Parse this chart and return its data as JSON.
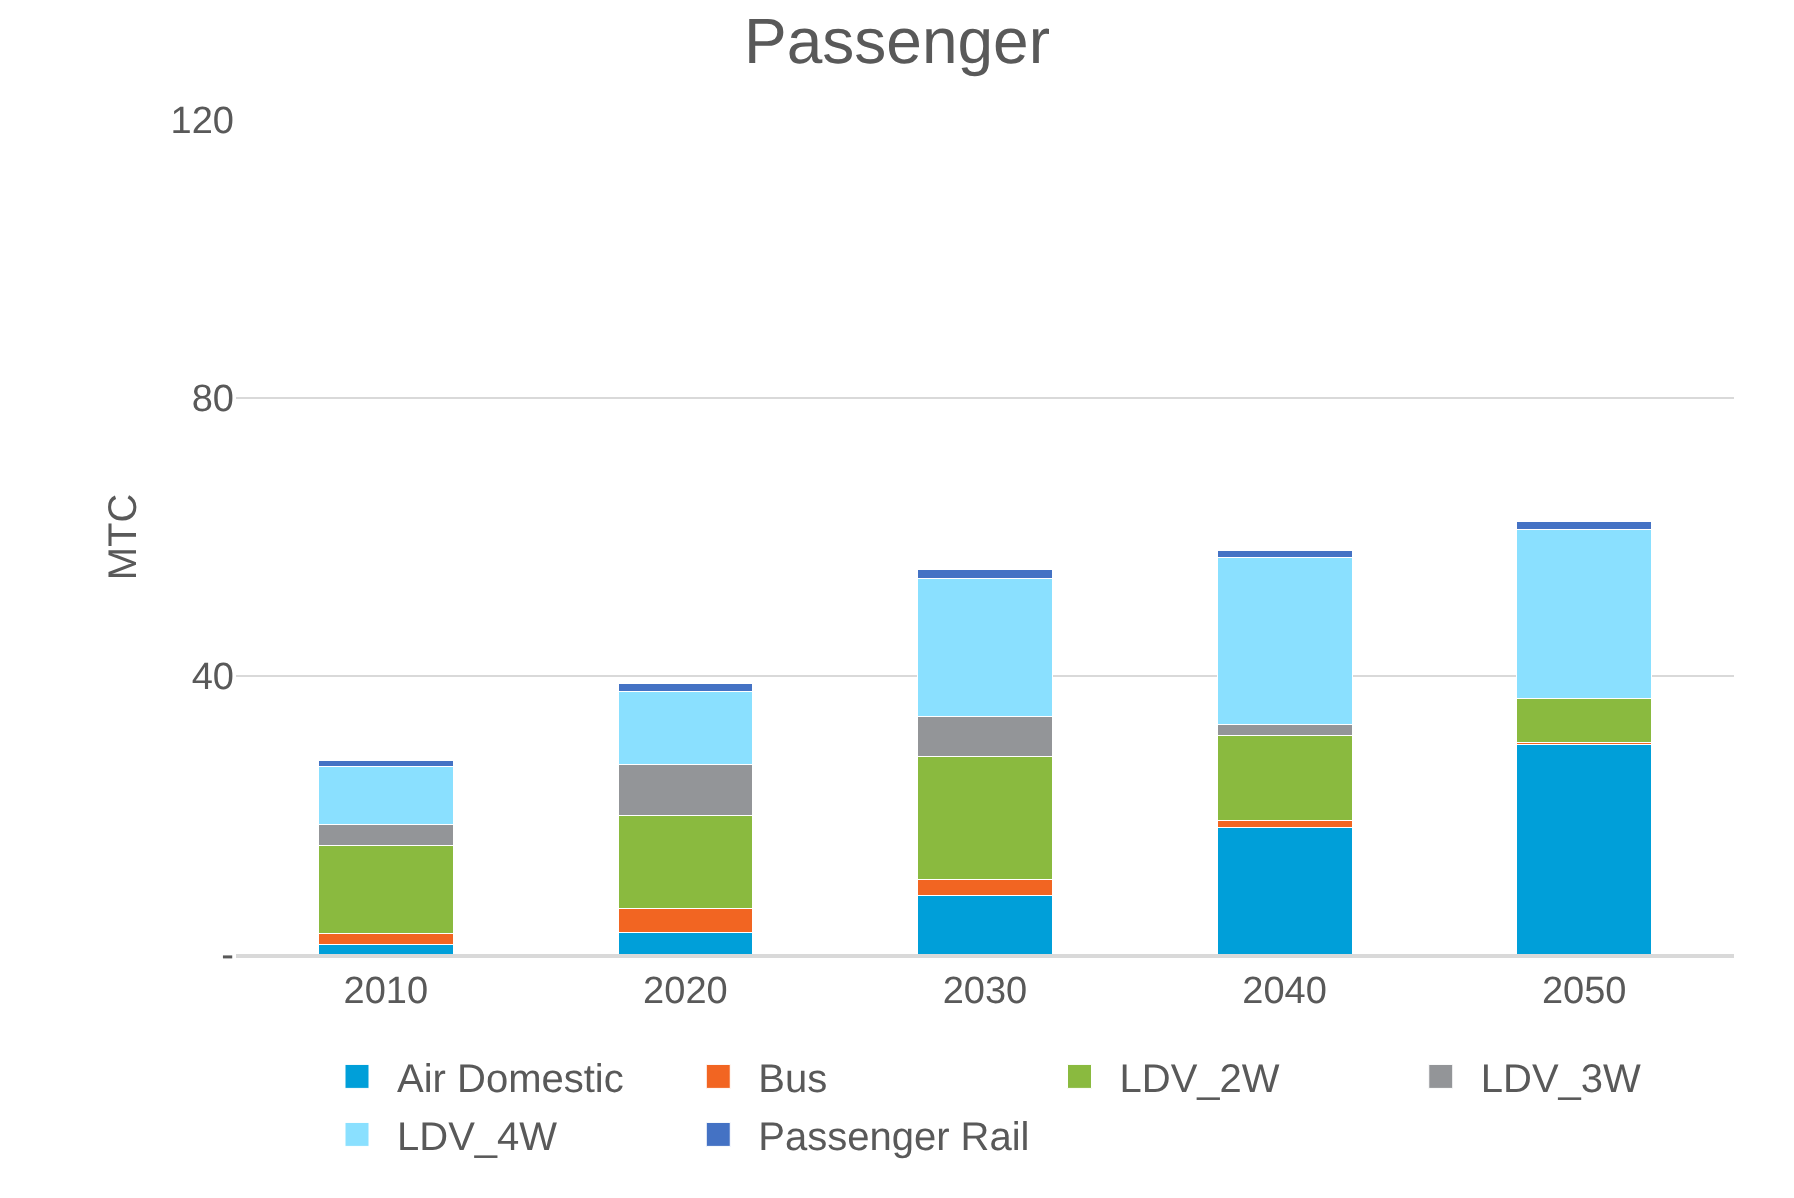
{
  "chart_data": {
    "type": "bar",
    "title": "Passenger",
    "ylabel": "MTC",
    "stacked": true,
    "categories": [
      "2010",
      "2020",
      "2030",
      "2040",
      "2050"
    ],
    "series": [
      {
        "name": "Air Domestic",
        "color": "#009fd9",
        "values": [
          1.4,
          3.1,
          8.4,
          18.2,
          30.1
        ]
      },
      {
        "name": "Bus",
        "color": "#f26522",
        "values": [
          1.6,
          3.4,
          2.3,
          1.0,
          0.4
        ]
      },
      {
        "name": "LDV_2W",
        "color": "#8aba3f",
        "values": [
          12.6,
          13.5,
          17.7,
          12.2,
          6.2
        ]
      },
      {
        "name": "LDV_3W",
        "color": "#939598",
        "values": [
          3.1,
          7.3,
          5.8,
          1.6,
          0
        ]
      },
      {
        "name": "LDV_4W",
        "color": "#8ae0ff",
        "values": [
          8.3,
          10.4,
          19.9,
          24.0,
          24.4
        ]
      },
      {
        "name": "Passenger Rail",
        "color": "#4472c4",
        "values": [
          0.9,
          1.2,
          1.2,
          1.0,
          1.2
        ]
      }
    ],
    "ylim": [
      0,
      120
    ],
    "yticks": [
      {
        "value": 0,
        "label": "-"
      },
      40,
      80,
      120
    ],
    "grid": "y",
    "legend": "bottom"
  }
}
